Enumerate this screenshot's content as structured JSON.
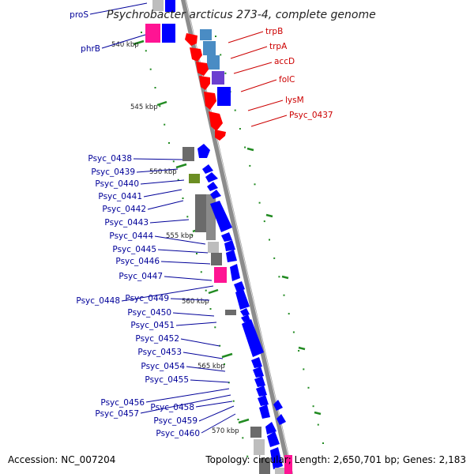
{
  "title": "Psychrobacter arcticus 273-4, complete genome",
  "footer": {
    "accession": "Accession: NC_007204",
    "topology": "Topology: circular; Length: 2,650,701 bp; Genes: 2,183"
  },
  "colors": {
    "red_gene": "#ff0000",
    "blue_gene": "#0000ff",
    "steel_gene": "#4a8cc4",
    "purple_gene": "#6a3fd0",
    "pink_gene": "#ff1493",
    "gray_gene": "#6b6b6b",
    "light_gray_gene": "#bdbdbd",
    "olive_gene": "#6b8e23",
    "axis": "#8c8c8c",
    "tick": "#228b22",
    "right_label": "#cc0000",
    "left_label": "#000099"
  },
  "ticks": [
    "540 kbp",
    "545 kbp",
    "550 kbp",
    "555 kbp",
    "560 kbp",
    "565 kbp",
    "570 kbp"
  ],
  "right_labels": [
    "trpB",
    "trpA",
    "accD",
    "folC",
    "lysM",
    "Psyc_0437"
  ],
  "left_labels": [
    "proS",
    "phrB",
    "Psyc_0438",
    "Psyc_0439",
    "Psyc_0440",
    "Psyc_0441",
    "Psyc_0442",
    "Psyc_0443",
    "Psyc_0444",
    "Psyc_0445",
    "Psyc_0446",
    "Psyc_0447",
    "Psyc_0448",
    "Psyc_0449",
    "Psyc_0450",
    "Psyc_0451",
    "Psyc_0452",
    "Psyc_0453",
    "Psyc_0454",
    "Psyc_0455",
    "Psyc_0456",
    "Psyc_0457",
    "Psyc_0458",
    "Psyc_0459",
    "Psyc_0460"
  ]
}
